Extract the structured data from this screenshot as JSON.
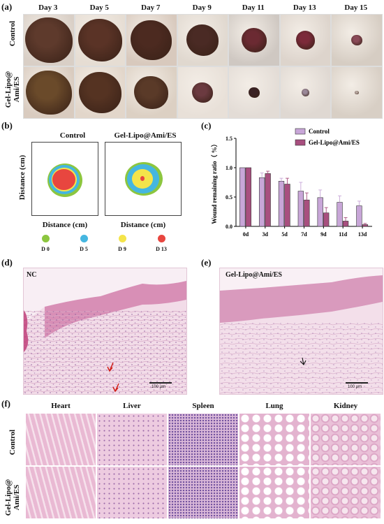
{
  "panels": {
    "a": "(a)",
    "b": "(b)",
    "c": "(c)",
    "d": "(d)",
    "e": "(e)",
    "f": "(f)"
  },
  "wound_photos": {
    "days": [
      "Day 3",
      "Day 5",
      "Day 7",
      "Day 9",
      "Day 11",
      "Day 13",
      "Day 15"
    ],
    "rows": [
      "Control",
      "Gel-Lipo@\nAmi/ES"
    ],
    "sizes": [
      [
        0.95,
        0.88,
        0.82,
        0.65,
        0.5,
        0.38,
        0.22
      ],
      [
        0.92,
        0.85,
        0.68,
        0.42,
        0.22,
        0.16,
        0.08
      ]
    ]
  },
  "wound_map": {
    "titles": [
      "Control",
      "Gel-Lipo@Ami/ES"
    ],
    "ylabel": "Distance (cm)",
    "xlabel": "Distance (cm)",
    "legend": [
      {
        "label": "D 0",
        "color": "#8cc63f"
      },
      {
        "label": "D 5",
        "color": "#45b6e0"
      },
      {
        "label": "D 9",
        "color": "#f4e44a"
      },
      {
        "label": "D 13",
        "color": "#e8463f"
      }
    ]
  },
  "chart_data": {
    "type": "bar",
    "categories": [
      "0d",
      "3d",
      "5d",
      "7d",
      "9d",
      "11d",
      "13d"
    ],
    "series": [
      {
        "name": "Control",
        "values": [
          1.0,
          0.83,
          0.77,
          0.6,
          0.49,
          0.41,
          0.35
        ],
        "errors": [
          0.0,
          0.08,
          0.05,
          0.15,
          0.13,
          0.11,
          0.08
        ],
        "color": "#c8a6d8"
      },
      {
        "name": "Gel-Lipo@Ami/ES",
        "values": [
          1.0,
          0.9,
          0.72,
          0.45,
          0.23,
          0.09,
          0.03
        ],
        "errors": [
          0.0,
          0.04,
          0.1,
          0.12,
          0.09,
          0.06,
          0.02
        ],
        "color": "#a84f7f"
      }
    ],
    "ylabel": "Wound remaining ratio（ %）",
    "yticks": [
      "0.0",
      "0.5",
      "1.0",
      "1.5"
    ],
    "ylim": [
      0,
      1.5
    ],
    "legend_position": "top-right"
  },
  "histology": {
    "left_label": "NC",
    "right_label": "Gel-Lipo@Ami/ES",
    "scale": "100 μm"
  },
  "organs": {
    "columns": [
      "Heart",
      "Liver",
      "Spleen",
      "Lung",
      "Kidney"
    ],
    "rows": [
      "Control",
      "Gel-Lipo@\nAmi/ES"
    ]
  }
}
